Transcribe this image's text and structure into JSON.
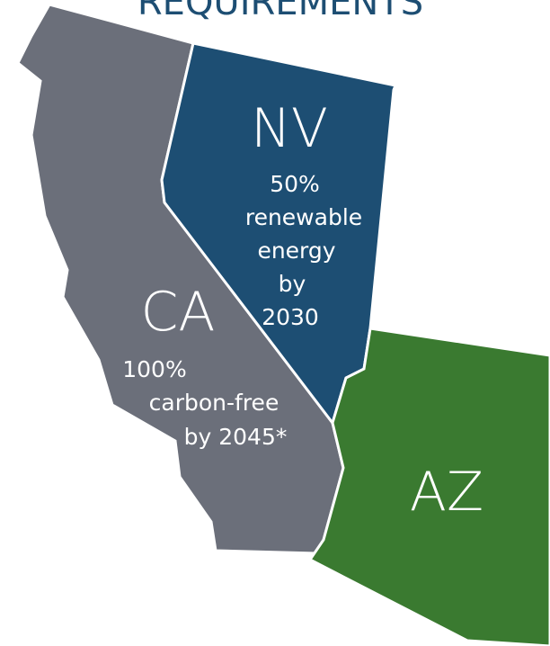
{
  "title": "REQUIREMENTS",
  "states": [
    {
      "abbr": "NV",
      "lines": [
        "50%",
        "renewable",
        "energy",
        "by",
        "2030"
      ]
    },
    {
      "abbr": "CA",
      "lines": [
        "100%",
        "carbon-free",
        "by 2045*"
      ]
    },
    {
      "abbr": "AZ",
      "lines": []
    }
  ]
}
